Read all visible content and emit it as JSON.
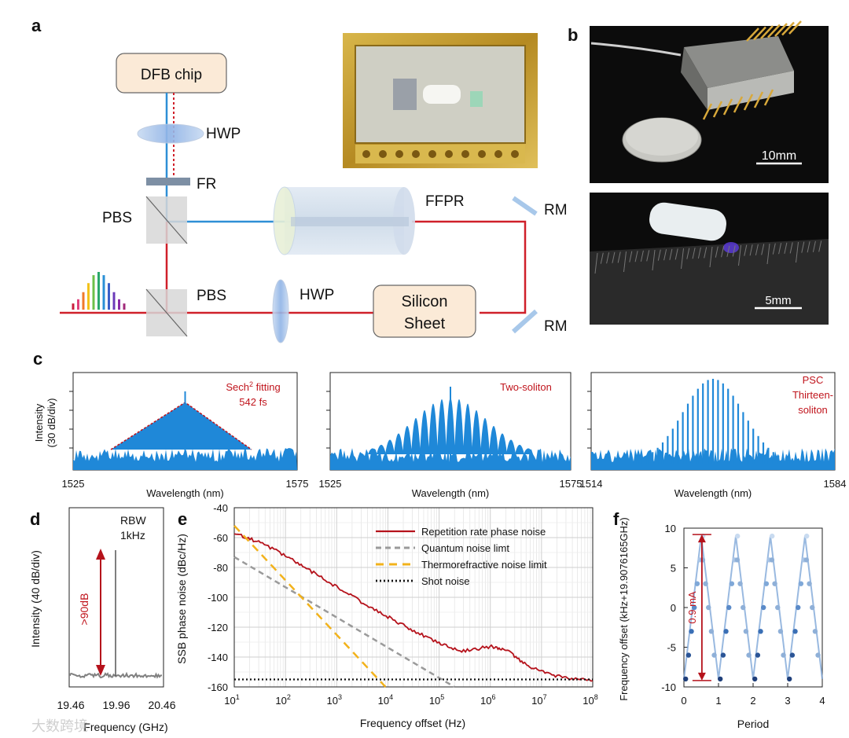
{
  "panels": {
    "a": "a",
    "b": "b",
    "c": "c",
    "d": "d",
    "e": "e",
    "f": "f"
  },
  "panel_a": {
    "dfb": "DFB chip",
    "hwp1": "HWP",
    "fr": "FR",
    "pbs1": "PBS",
    "ffpr": "FFPR",
    "rm1": "RM",
    "pbs2": "PBS",
    "hwp2": "HWP",
    "silicon1": "Silicon",
    "silicon2": "Sheet",
    "rm2": "RM",
    "colors": {
      "blue": "#2e8fd6",
      "red": "#d0202a"
    }
  },
  "panel_b": {
    "scale1": "10mm",
    "scale2": "5mm"
  },
  "panel_c": {
    "ylabel1": "Intensity",
    "ylabel2": "(30 dB/div)",
    "plots": [
      {
        "xmin": "1525",
        "xmax": "1575",
        "xlabel": "Wavelength (nm)",
        "ann": [
          "Sech",
          "2",
          " fitting",
          "542 fs"
        ]
      },
      {
        "xmin": "1525",
        "xmax": "1575",
        "xlabel": "Wavelength (nm)",
        "ann": [
          "Two-soliton"
        ]
      },
      {
        "xmin": "1514",
        "xmax": "1584",
        "xlabel": "Wavelength (nm)",
        "ann": [
          "PSC",
          "Thirteen-",
          "soliton"
        ]
      }
    ]
  },
  "panel_d": {
    "ylabel": "Intensity (40 dB/div)",
    "xlabel": "Frequency (GHz)",
    "ticks": [
      "19.46",
      "19.96",
      "20.46"
    ],
    "rbw1": "RBW",
    "rbw2": "1kHz",
    "arrow": ">90dB"
  },
  "chart_data": [
    {
      "type": "line",
      "title": "",
      "xlabel": "Frequency offset (Hz)",
      "ylabel": "SSB phase noise (dBc/Hz)",
      "xscale": "log",
      "xlim": [
        10,
        100000000
      ],
      "ylim": [
        -160,
        -40
      ],
      "xticks": [
        "10",
        "10",
        "10",
        "10",
        "10",
        "10",
        "10",
        "10"
      ],
      "xtick_exp": [
        "1",
        "2",
        "3",
        "4",
        "5",
        "6",
        "7",
        "8"
      ],
      "yticks": [
        "-40",
        "-60",
        "-80",
        "-100",
        "-120",
        "-140",
        "-160"
      ],
      "series": [
        {
          "name": "Repetition rate phase noise",
          "color": "#b5121b",
          "x": [
            10,
            30,
            100,
            300,
            1000,
            3000,
            10000,
            30000,
            100000,
            300000,
            1000000,
            2000000,
            5000000,
            10000000,
            30000000,
            100000000
          ],
          "y": [
            -57,
            -63,
            -72,
            -82,
            -93,
            -103,
            -113,
            -122,
            -131,
            -136,
            -133,
            -135,
            -145,
            -150,
            -154,
            -156
          ]
        },
        {
          "name": "Quantum noise limt",
          "color": "#9a9a9a",
          "x": [
            10,
            200000
          ],
          "y": [
            -73,
            -160
          ]
        },
        {
          "name": "Thermorefractive noise limit",
          "color": "#f2b21b",
          "x": [
            10,
            9000
          ],
          "y": [
            -52,
            -160
          ]
        },
        {
          "name": "Shot noise",
          "color": "#111111",
          "x": [
            10,
            100000000
          ],
          "y": [
            -155,
            -155
          ]
        }
      ]
    },
    {
      "type": "line",
      "xlabel": "Period",
      "ylabel": "Frequency offset (kHz+19.9076165GHz)",
      "xlim": [
        0,
        4
      ],
      "ylim": [
        -10,
        10
      ],
      "xticks": [
        "0",
        "1",
        "2",
        "3",
        "4"
      ],
      "yticks": [
        "10",
        "5",
        "0",
        "-5",
        "-10"
      ],
      "annotation": "0.9 mA",
      "series": [
        {
          "name": "frequency offset",
          "color": "#3a6fb5",
          "x": [
            0,
            0.5,
            1,
            1.5,
            2,
            2.5,
            3,
            3.5,
            4
          ],
          "y": [
            -9,
            9,
            -9,
            9,
            -9,
            9,
            -9,
            9,
            -9
          ]
        }
      ]
    }
  ],
  "watermark": "大数跨境"
}
